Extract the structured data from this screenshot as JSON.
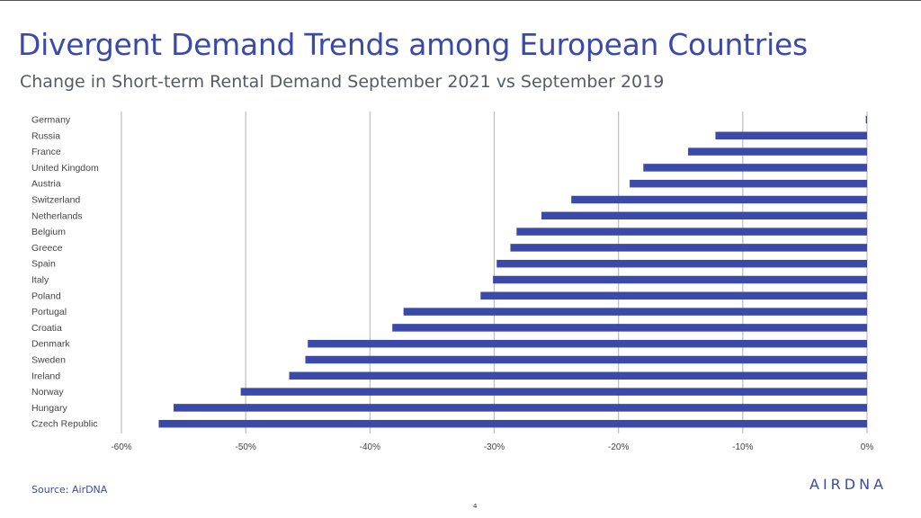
{
  "slide": {
    "title": "Divergent Demand Trends among European Countries",
    "subtitle": "Change in Short-term Rental Demand September 2021 vs September 2019",
    "source": "Source: AirDNA",
    "page_number": "4",
    "logo_text": "AIRDNA"
  },
  "colors": {
    "title": "#3b4aa8",
    "bar": "#3b49a8",
    "grid": "#bdbdbd",
    "text": "#555b66"
  },
  "chart_data": {
    "type": "bar",
    "orientation": "horizontal",
    "title": "",
    "xlabel": "",
    "ylabel": "",
    "categories": [
      "Germany",
      "Russia",
      "France",
      "United Kingdom",
      "Austria",
      "Switzerland",
      "Netherlands",
      "Belgium",
      "Greece",
      "Spain",
      "Italy",
      "Poland",
      "Portugal",
      "Croatia",
      "Denmark",
      "Sweden",
      "Ireland",
      "Norway",
      "Hungary",
      "Czech Republic"
    ],
    "values": [
      -0.1,
      -12.2,
      -14.4,
      -18.0,
      -19.1,
      -23.8,
      -26.2,
      -28.2,
      -28.7,
      -29.8,
      -30.1,
      -31.1,
      -37.3,
      -38.2,
      -45.0,
      -45.2,
      -46.5,
      -50.4,
      -55.8,
      -57.0
    ],
    "xlim": [
      -60,
      0
    ],
    "ticks": [
      -60,
      -50,
      -40,
      -30,
      -20,
      -10,
      0
    ],
    "tick_labels": [
      "-60%",
      "-50%",
      "-40%",
      "-30%",
      "-20%",
      "-10%",
      "0%"
    ],
    "grid": "vertical",
    "legend": "none"
  }
}
